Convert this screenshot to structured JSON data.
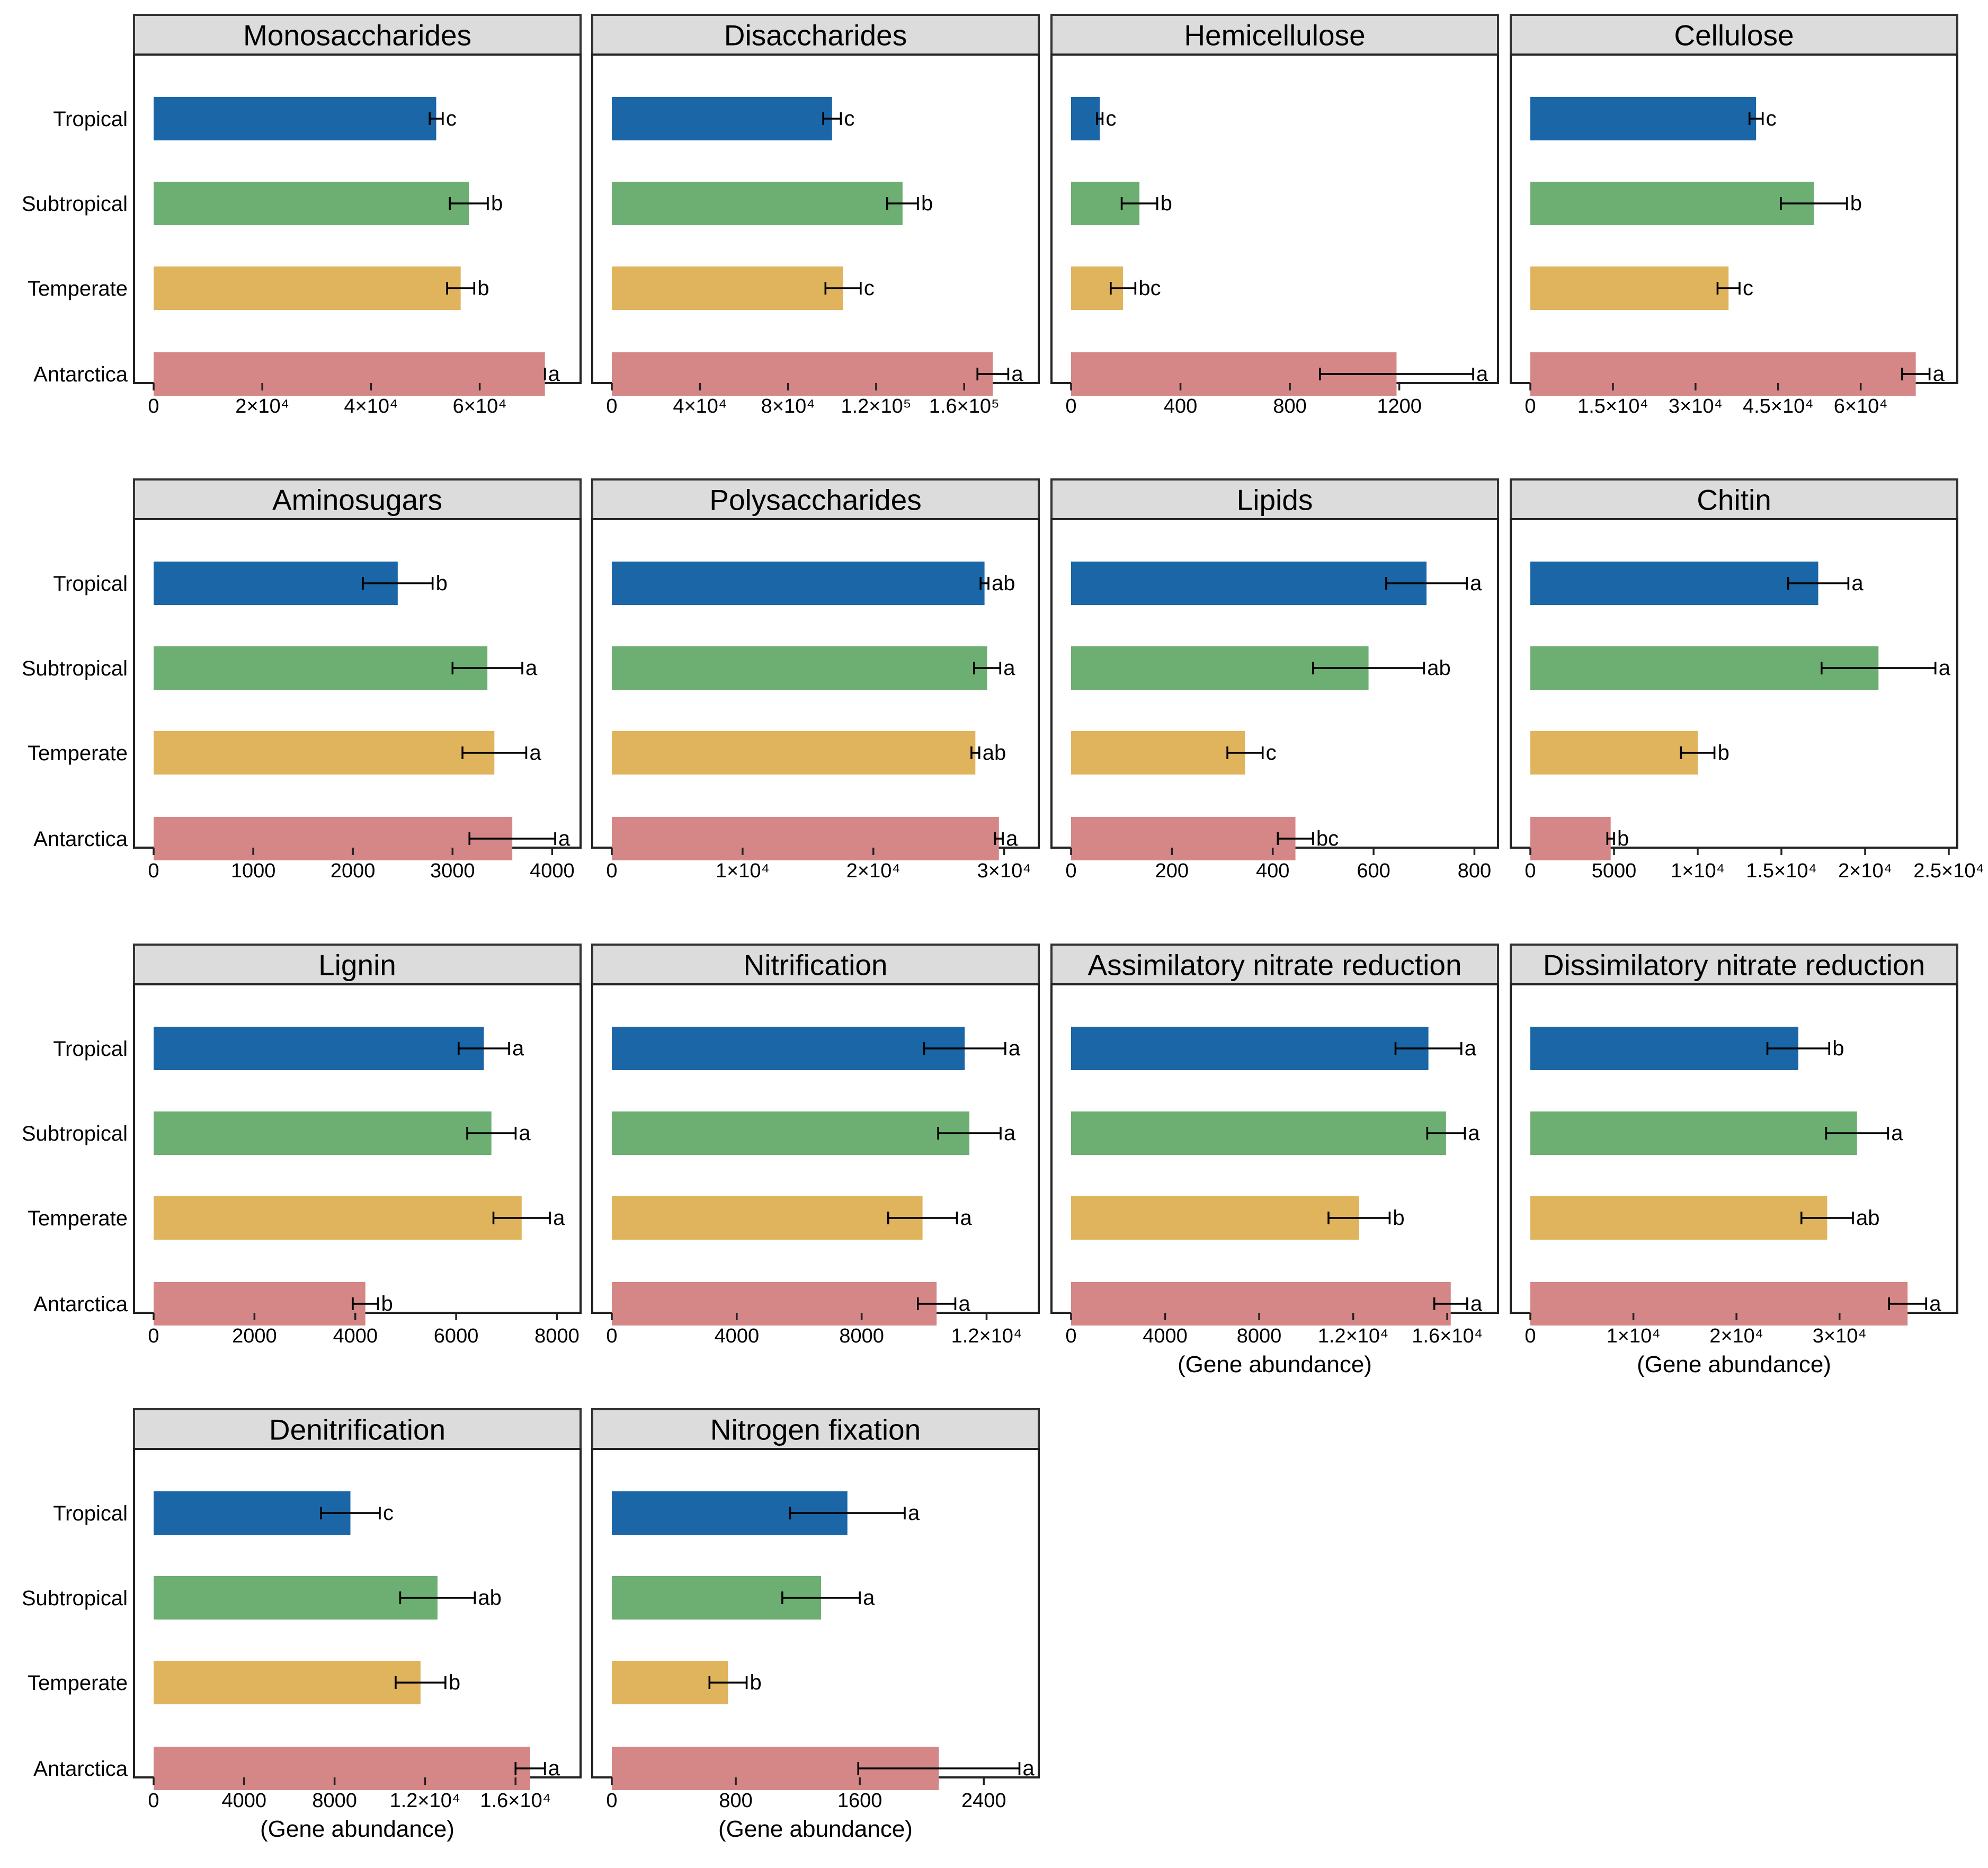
{
  "colors": {
    "Tropical": "#1a66a6",
    "Subtropical": "#6daf73",
    "Temperate": "#e0b45c",
    "Antarctica": "#d58686",
    "strip": "#dcdcdc"
  },
  "chart_data": [
    {
      "type": "bar",
      "orientation": "horizontal",
      "title": "Monosaccharides",
      "categories": [
        "Tropical",
        "Subtropical",
        "Temperate",
        "Antarctica"
      ],
      "values": [
        52000,
        58000,
        56500,
        72000
      ],
      "errors": [
        1200,
        3500,
        2500,
        0
      ],
      "letters": [
        "c",
        "b",
        "b",
        "a"
      ],
      "xlim": [
        0,
        77000
      ],
      "xticks": [
        0,
        20000,
        40000,
        60000
      ],
      "xtick_labels": [
        "0",
        "2×10⁴",
        "4×10⁴",
        "6×10⁴"
      ],
      "xlabel": ""
    },
    {
      "type": "bar",
      "orientation": "horizontal",
      "title": "Disaccharides",
      "categories": [
        "Tropical",
        "Subtropical",
        "Temperate",
        "Antarctica"
      ],
      "values": [
        100000,
        132000,
        105000,
        173000
      ],
      "errors": [
        4000,
        7000,
        8000,
        7000
      ],
      "letters": [
        "c",
        "b",
        "c",
        "a"
      ],
      "xlim": [
        0,
        190000
      ],
      "xticks": [
        0,
        40000,
        80000,
        120000,
        160000
      ],
      "xtick_labels": [
        "0",
        "4×10⁴",
        "8×10⁴",
        "1.2×10⁵",
        "1.6×10⁵"
      ],
      "xlabel": ""
    },
    {
      "type": "bar",
      "orientation": "horizontal",
      "title": "Hemicellulose",
      "categories": [
        "Tropical",
        "Subtropical",
        "Temperate",
        "Antarctica"
      ],
      "values": [
        105,
        250,
        190,
        1190
      ],
      "errors": [
        10,
        65,
        45,
        280
      ],
      "letters": [
        "c",
        "b",
        "bc",
        "a"
      ],
      "xlim": [
        0,
        1530
      ],
      "xticks": [
        0,
        400,
        800,
        1200
      ],
      "xtick_labels": [
        "0",
        "400",
        "800",
        "1200"
      ],
      "xlabel": ""
    },
    {
      "type": "bar",
      "orientation": "horizontal",
      "title": "Cellulose",
      "categories": [
        "Tropical",
        "Subtropical",
        "Temperate",
        "Antarctica"
      ],
      "values": [
        41000,
        51500,
        36000,
        70000
      ],
      "errors": [
        1200,
        6000,
        2000,
        2500
      ],
      "letters": [
        "c",
        "b",
        "c",
        "a"
      ],
      "xlim": [
        0,
        76000
      ],
      "xticks": [
        0,
        15000,
        30000,
        45000,
        60000
      ],
      "xtick_labels": [
        "0",
        "1.5×10⁴",
        "3×10⁴",
        "4.5×10⁴",
        "6×10⁴"
      ],
      "xlabel": ""
    },
    {
      "type": "bar",
      "orientation": "horizontal",
      "title": "Aminosugars",
      "categories": [
        "Tropical",
        "Subtropical",
        "Temperate",
        "Antarctica"
      ],
      "values": [
        2450,
        3350,
        3420,
        3600
      ],
      "errors": [
        350,
        350,
        320,
        430
      ],
      "letters": [
        "b",
        "a",
        "a",
        "a"
      ],
      "xlim": [
        0,
        4200
      ],
      "xticks": [
        0,
        1000,
        2000,
        3000,
        4000
      ],
      "xtick_labels": [
        "0",
        "1000",
        "2000",
        "3000",
        "4000"
      ],
      "xlabel": ""
    },
    {
      "type": "bar",
      "orientation": "horizontal",
      "title": "Polysaccharides",
      "categories": [
        "Tropical",
        "Subtropical",
        "Temperate",
        "Antarctica"
      ],
      "values": [
        28500,
        28700,
        27800,
        29600
      ],
      "errors": [
        300,
        1000,
        300,
        300
      ],
      "letters": [
        "ab",
        "a",
        "ab",
        "a"
      ],
      "xlim": [
        0,
        32000
      ],
      "xticks": [
        0,
        10000,
        20000,
        30000
      ],
      "xtick_labels": [
        "0",
        "1×10⁴",
        "2×10⁴",
        "3×10⁴"
      ],
      "xlabel": ""
    },
    {
      "type": "bar",
      "orientation": "horizontal",
      "title": "Lipids",
      "categories": [
        "Tropical",
        "Subtropical",
        "Temperate",
        "Antarctica"
      ],
      "values": [
        705,
        590,
        345,
        445
      ],
      "errors": [
        80,
        110,
        35,
        35
      ],
      "letters": [
        "a",
        "ab",
        "c",
        "bc"
      ],
      "xlim": [
        0,
        830
      ],
      "xticks": [
        0,
        200,
        400,
        600,
        800
      ],
      "xtick_labels": [
        "0",
        "200",
        "400",
        "600",
        "800"
      ],
      "xlabel": ""
    },
    {
      "type": "bar",
      "orientation": "horizontal",
      "title": "Chitin",
      "categories": [
        "Tropical",
        "Subtropical",
        "Temperate",
        "Antarctica"
      ],
      "values": [
        17200,
        20800,
        10000,
        4800
      ],
      "errors": [
        1800,
        3400,
        1000,
        200
      ],
      "letters": [
        "a",
        "a",
        "b",
        "b"
      ],
      "xlim": [
        0,
        25000
      ],
      "xticks": [
        0,
        5000,
        10000,
        15000,
        20000,
        25000
      ],
      "xtick_labels": [
        "0",
        "5000",
        "1×10⁴",
        "1.5×10⁴",
        "2×10⁴",
        "2.5×10⁴"
      ],
      "xlabel": ""
    },
    {
      "type": "bar",
      "orientation": "horizontal",
      "title": "Lignin",
      "categories": [
        "Tropical",
        "Subtropical",
        "Temperate",
        "Antarctica"
      ],
      "values": [
        6550,
        6700,
        7300,
        4200
      ],
      "errors": [
        500,
        480,
        560,
        250
      ],
      "letters": [
        "a",
        "a",
        "a",
        "b"
      ],
      "xlim": [
        0,
        8300
      ],
      "xticks": [
        0,
        2000,
        4000,
        6000,
        8000
      ],
      "xtick_labels": [
        "0",
        "2000",
        "4000",
        "6000",
        "8000"
      ],
      "xlabel": ""
    },
    {
      "type": "bar",
      "orientation": "horizontal",
      "title": "Nitrification",
      "categories": [
        "Tropical",
        "Subtropical",
        "Temperate",
        "Antarctica"
      ],
      "values": [
        11300,
        11450,
        9950,
        10400
      ],
      "errors": [
        1300,
        1000,
        1100,
        600
      ],
      "letters": [
        "a",
        "a",
        "a",
        "a"
      ],
      "xlim": [
        0,
        13400
      ],
      "xticks": [
        0,
        4000,
        8000,
        12000
      ],
      "xtick_labels": [
        "0",
        "4000",
        "8000",
        "1.2×10⁴"
      ],
      "xlabel": ""
    },
    {
      "type": "bar",
      "orientation": "horizontal",
      "title": "Assimilatory nitrate reduction",
      "categories": [
        "Tropical",
        "Subtropical",
        "Temperate",
        "Antarctica"
      ],
      "values": [
        15200,
        15950,
        12250,
        16150
      ],
      "errors": [
        1400,
        800,
        1300,
        700
      ],
      "letters": [
        "a",
        "a",
        "b",
        "a"
      ],
      "xlim": [
        0,
        17800
      ],
      "xticks": [
        0,
        4000,
        8000,
        12000,
        16000
      ],
      "xtick_labels": [
        "0",
        "4000",
        "8000",
        "1.2×10⁴",
        "1.6×10⁴"
      ],
      "xlabel": "(Gene abundance)"
    },
    {
      "type": "bar",
      "orientation": "horizontal",
      "title": "Dissimilatory nitrate reduction",
      "categories": [
        "Tropical",
        "Subtropical",
        "Temperate",
        "Antarctica"
      ],
      "values": [
        26000,
        31700,
        28800,
        36600
      ],
      "errors": [
        3000,
        3000,
        2500,
        1800
      ],
      "letters": [
        "b",
        "a",
        "ab",
        "a"
      ],
      "xlim": [
        0,
        40600
      ],
      "xticks": [
        0,
        10000,
        20000,
        30000
      ],
      "xtick_labels": [
        "0",
        "1×10⁴",
        "2×10⁴",
        "3×10⁴"
      ],
      "xlabel": "(Gene abundance)"
    },
    {
      "type": "bar",
      "orientation": "horizontal",
      "title": "Denitrification",
      "categories": [
        "Tropical",
        "Subtropical",
        "Temperate",
        "Antarctica"
      ],
      "values": [
        8700,
        12550,
        11800,
        16650
      ],
      "errors": [
        1300,
        1650,
        1100,
        650
      ],
      "letters": [
        "c",
        "ab",
        "b",
        "a"
      ],
      "xlim": [
        0,
        18500
      ],
      "xticks": [
        0,
        4000,
        8000,
        12000,
        16000
      ],
      "xtick_labels": [
        "0",
        "4000",
        "8000",
        "1.2×10⁴",
        "1.6×10⁴"
      ],
      "xlabel": "(Gene abundance)"
    },
    {
      "type": "bar",
      "orientation": "horizontal",
      "title": "Nitrogen fixation",
      "categories": [
        "Tropical",
        "Subtropical",
        "Temperate",
        "Antarctica"
      ],
      "values": [
        1520,
        1350,
        750,
        2110
      ],
      "errors": [
        370,
        250,
        120,
        520
      ],
      "letters": [
        "a",
        "a",
        "b",
        "a"
      ],
      "xlim": [
        0,
        2700
      ],
      "xticks": [
        0,
        800,
        1600,
        2400
      ],
      "xtick_labels": [
        "0",
        "800",
        "1600",
        "2400"
      ],
      "xlabel": "(Gene abundance)"
    }
  ]
}
